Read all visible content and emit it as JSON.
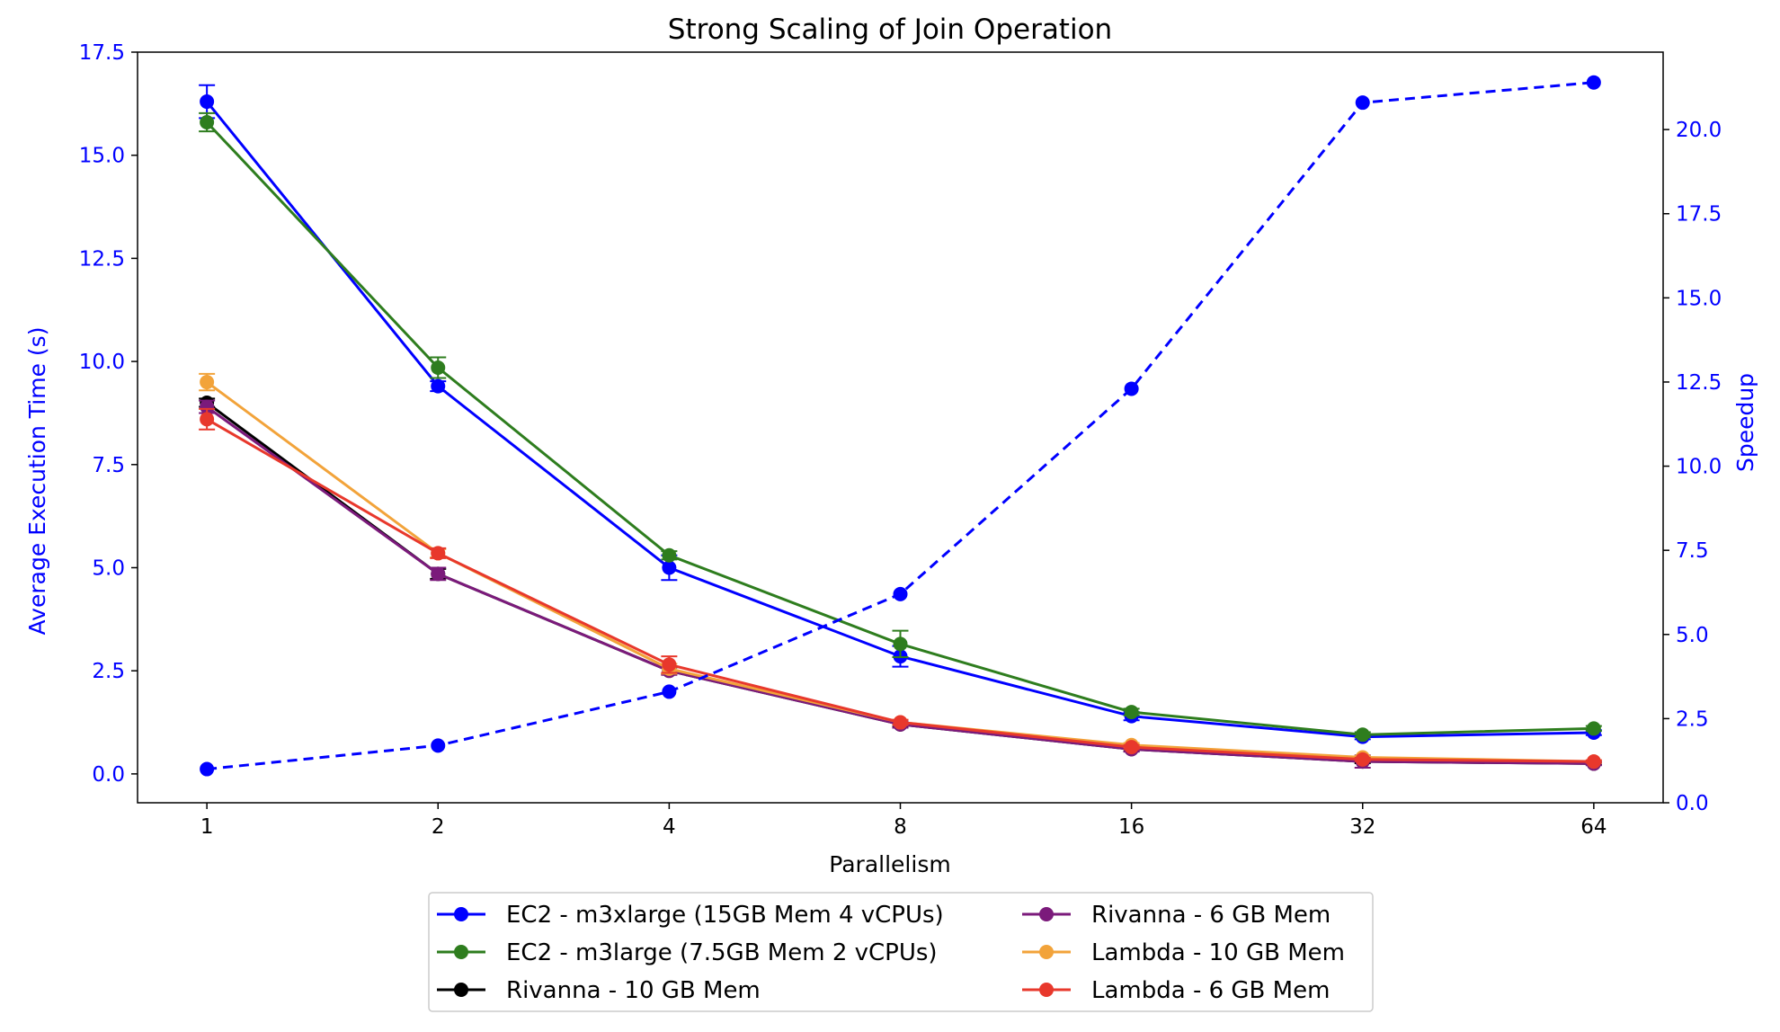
{
  "chart_data": {
    "type": "line",
    "title": "Strong Scaling of Join Operation",
    "xlabel": "Parallelism",
    "ylabel": "Average Execution Time (s)",
    "y2label": "Speedup",
    "x": [
      1,
      2,
      4,
      8,
      16,
      32,
      64
    ],
    "x_ticks": [
      "1",
      "2",
      "4",
      "8",
      "16",
      "32",
      "64"
    ],
    "x_scale": "log2",
    "ylim": [
      -0.7,
      17.5
    ],
    "y_ticks": [
      "0.0",
      "2.5",
      "5.0",
      "7.5",
      "10.0",
      "12.5",
      "15.0",
      "17.5"
    ],
    "y_tick_values": [
      0,
      2.5,
      5,
      7.5,
      10,
      12.5,
      15,
      17.5
    ],
    "y2lim": [
      0,
      22.3
    ],
    "y2_ticks": [
      "0.0",
      "2.5",
      "5.0",
      "7.5",
      "10.0",
      "12.5",
      "15.0",
      "17.5",
      "20.0"
    ],
    "y2_tick_values": [
      0,
      2.5,
      5,
      7.5,
      10,
      12.5,
      15,
      17.5,
      20
    ],
    "axis_color": "#0000ff",
    "legend_position": "bottom-center",
    "grid": false,
    "series": [
      {
        "name": "EC2 - m3xlarge (15GB Mem 4 vCPUs)",
        "color": "#0000ff",
        "marker": "circle",
        "values": [
          16.3,
          9.4,
          5.0,
          2.85,
          1.4,
          0.9,
          1.0
        ],
        "errors": [
          0.4,
          0.12,
          0.3,
          0.25,
          0.1,
          0.06,
          0.06
        ]
      },
      {
        "name": "EC2 - m3large (7.5GB Mem 2 vCPUs)",
        "color": "#2e7d1e",
        "marker": "circle",
        "values": [
          15.8,
          9.85,
          5.3,
          3.15,
          1.5,
          0.95,
          1.1
        ],
        "errors": [
          0.22,
          0.25,
          0.1,
          0.32,
          0.08,
          0.06,
          0.06
        ]
      },
      {
        "name": "Rivanna - 10 GB Mem",
        "color": "#000000",
        "marker": "circle",
        "values": [
          9.0,
          4.85,
          2.5,
          1.2,
          0.6,
          0.3,
          0.25
        ],
        "errors": [
          0.1,
          0.12,
          0.08,
          0.06,
          0.05,
          0.04,
          0.03
        ]
      },
      {
        "name": "Rivanna - 6 GB Mem",
        "color": "#7b1a7b",
        "marker": "circle",
        "values": [
          8.9,
          4.85,
          2.5,
          1.2,
          0.6,
          0.3,
          0.25
        ],
        "errors": [
          0.15,
          0.15,
          0.1,
          0.08,
          0.06,
          0.15,
          0.04
        ]
      },
      {
        "name": "Lambda - 10 GB Mem",
        "color": "#f2a33a",
        "marker": "circle",
        "values": [
          9.5,
          5.35,
          2.55,
          1.25,
          0.7,
          0.4,
          0.3
        ],
        "errors": [
          0.2,
          0.1,
          0.12,
          0.06,
          0.05,
          0.04,
          0.03
        ]
      },
      {
        "name": "Lambda - 6 GB Mem",
        "color": "#e8382c",
        "marker": "circle",
        "values": [
          8.6,
          5.35,
          2.65,
          1.25,
          0.65,
          0.35,
          0.3
        ],
        "errors": [
          0.25,
          0.12,
          0.2,
          0.06,
          0.05,
          0.04,
          0.03
        ]
      },
      {
        "name": "",
        "color": "#0000ff",
        "marker": "circle",
        "linestyle": "dashed",
        "axis": "right",
        "values": [
          1.0,
          1.7,
          3.3,
          6.2,
          12.3,
          20.8,
          21.4
        ]
      }
    ]
  }
}
